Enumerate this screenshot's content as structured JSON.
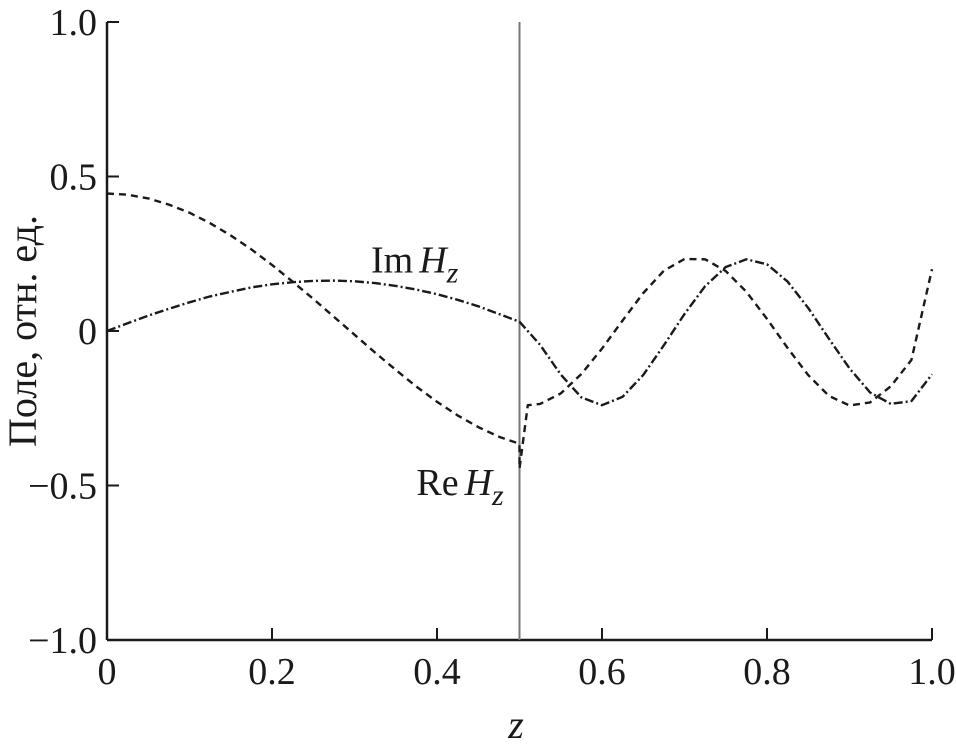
{
  "chart_data": {
    "type": "line",
    "title": "",
    "xlabel": "z",
    "ylabel": "Поле, отн. ед.",
    "xlim": [
      0,
      1.0
    ],
    "ylim": [
      -1.0,
      1.0
    ],
    "x_ticks": [
      0,
      0.2,
      0.4,
      0.6,
      0.8,
      1.0
    ],
    "x_tick_labels": [
      "0",
      "0.2",
      "0.4",
      "0.6",
      "0.8",
      "1.0"
    ],
    "y_ticks": [
      -1.0,
      -0.5,
      0,
      0.5,
      1.0
    ],
    "y_tick_labels": [
      "−1.0",
      "−0.5",
      "0",
      "0.5",
      "1.0"
    ],
    "grid": false,
    "legend": "none",
    "vertical_line": {
      "x": 0.5,
      "color": "#777777"
    },
    "series": [
      {
        "name": "Re Hz",
        "label_parts": {
          "prefix": "Re",
          "var": "H",
          "sub": "z"
        },
        "label_at": {
          "x": 0.375,
          "y": -0.53
        },
        "style": "dashed",
        "color": "#1a1a1a",
        "x": [
          0,
          0.025,
          0.05,
          0.075,
          0.1,
          0.125,
          0.15,
          0.175,
          0.2,
          0.225,
          0.25,
          0.275,
          0.3,
          0.325,
          0.35,
          0.375,
          0.4,
          0.425,
          0.45,
          0.475,
          0.5,
          0.5,
          0.51,
          0.525,
          0.55,
          0.575,
          0.6,
          0.625,
          0.65,
          0.675,
          0.7,
          0.725,
          0.75,
          0.775,
          0.8,
          0.825,
          0.85,
          0.875,
          0.9,
          0.925,
          0.95,
          0.975,
          1.0
        ],
        "y": [
          0.445,
          0.441,
          0.429,
          0.409,
          0.383,
          0.349,
          0.309,
          0.264,
          0.214,
          0.16,
          0.104,
          0.046,
          -0.012,
          -0.07,
          -0.126,
          -0.18,
          -0.229,
          -0.273,
          -0.311,
          -0.342,
          -0.365,
          -0.445,
          -0.24,
          -0.236,
          -0.202,
          -0.139,
          -0.057,
          0.034,
          0.123,
          0.195,
          0.233,
          0.232,
          0.194,
          0.127,
          0.039,
          -0.055,
          -0.143,
          -0.21,
          -0.241,
          -0.231,
          -0.179,
          -0.094,
          0.2
        ]
      },
      {
        "name": "Im Hz",
        "label_parts": {
          "prefix": "Im",
          "var": "H",
          "sub": "z"
        },
        "label_at": {
          "x": 0.32,
          "y": 0.19
        },
        "style": "dashdot",
        "color": "#1a1a1a",
        "x": [
          0,
          0.025,
          0.05,
          0.075,
          0.1,
          0.125,
          0.15,
          0.175,
          0.2,
          0.225,
          0.25,
          0.275,
          0.3,
          0.325,
          0.35,
          0.375,
          0.4,
          0.425,
          0.45,
          0.475,
          0.5,
          0.525,
          0.55,
          0.575,
          0.6,
          0.625,
          0.65,
          0.675,
          0.7,
          0.725,
          0.75,
          0.775,
          0.8,
          0.825,
          0.85,
          0.875,
          0.9,
          0.925,
          0.95,
          0.975,
          1.0
        ],
        "y": [
          0,
          0.025,
          0.05,
          0.072,
          0.093,
          0.112,
          0.127,
          0.141,
          0.151,
          0.158,
          0.162,
          0.163,
          0.161,
          0.155,
          0.146,
          0.134,
          0.119,
          0.101,
          0.08,
          0.055,
          0.03,
          -0.045,
          -0.141,
          -0.215,
          -0.24,
          -0.213,
          -0.142,
          -0.046,
          0.055,
          0.145,
          0.207,
          0.232,
          0.216,
          0.16,
          0.074,
          -0.025,
          -0.121,
          -0.199,
          -0.236,
          -0.227,
          -0.14
        ]
      }
    ]
  }
}
